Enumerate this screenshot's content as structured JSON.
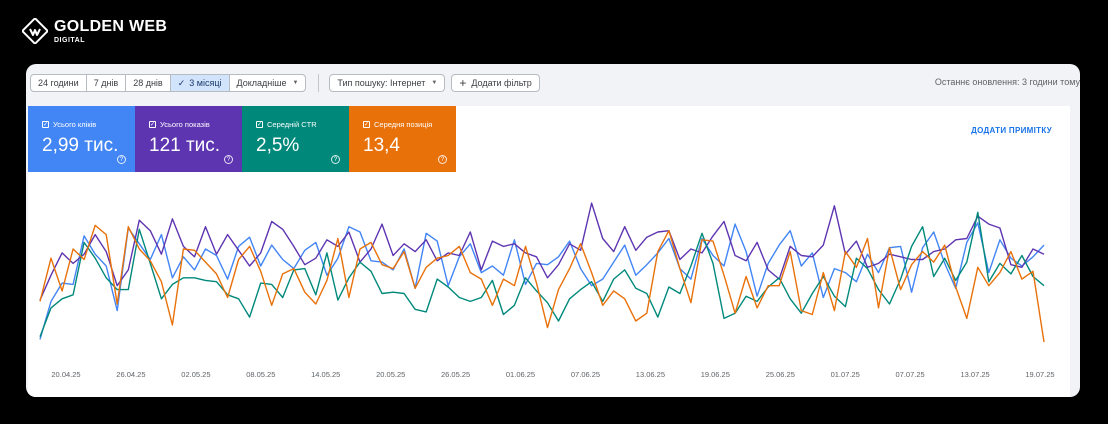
{
  "brand": {
    "name": "GOLDEN WEB",
    "sub": "DIGITAL",
    "logo_icon": "golden-web-logo-icon"
  },
  "toolbar": {
    "ranges": [
      {
        "label": "24 години",
        "active": false
      },
      {
        "label": "7 днів",
        "active": false
      },
      {
        "label": "28 днів",
        "active": false
      },
      {
        "label": "3 місяці",
        "active": true
      },
      {
        "label": "Докладніше",
        "active": false
      }
    ],
    "search_type": "Тип пошуку: Інтернет",
    "add_filter": "Додати фільтр",
    "last_update": "Останнє оновлення: 3 години тому"
  },
  "metrics": [
    {
      "label": "Усього кліків",
      "value": "2,99 тис.",
      "color": "#4285f4"
    },
    {
      "label": "Усього показів",
      "value": "121 тис.",
      "color": "#5e35b1"
    },
    {
      "label": "Середній CTR",
      "value": "2,5%",
      "color": "#00897b"
    },
    {
      "label": "Середня позиція",
      "value": "13,4",
      "color": "#e8710a"
    }
  ],
  "add_note": "ДОДАТИ ПРИМІТКУ",
  "chart_data": {
    "type": "line",
    "x_tick_labels": [
      "20.04.25",
      "26.04.25",
      "02.05.25",
      "08.05.25",
      "14.05.25",
      "20.05.25",
      "26.05.25",
      "01.06.25",
      "07.06.25",
      "13.06.25",
      "19.06.25",
      "25.06.25",
      "01.07.25",
      "07.07.25",
      "13.07.25",
      "19.07.25"
    ],
    "grid": false,
    "y_axis_visible": false,
    "series": [
      {
        "color": "#4285f4",
        "values": [
          2,
          31,
          45,
          44,
          81,
          67,
          58,
          24,
          87,
          75,
          63,
          82,
          49,
          65,
          55,
          71,
          66,
          48,
          73,
          80,
          58,
          74,
          63,
          56,
          70,
          76,
          51,
          64,
          88,
          84,
          62,
          61,
          55,
          71,
          41,
          83,
          77,
          43,
          65,
          75,
          53,
          58,
          51,
          78,
          44,
          60,
          59,
          65,
          77,
          56,
          43,
          48,
          61,
          74,
          51,
          59,
          68,
          79,
          56,
          48,
          79,
          66,
          58,
          90,
          69,
          35,
          60,
          74,
          85,
          58,
          68,
          34,
          56,
          53,
          46,
          67,
          53,
          72,
          73,
          38,
          72,
          84,
          60,
          41,
          76,
          91,
          53,
          78,
          64,
          58,
          65,
          74
        ]
      },
      {
        "color": "#5e35b1",
        "values": [
          32,
          51,
          68,
          60,
          67,
          82,
          69,
          43,
          55,
          93,
          85,
          67,
          94,
          73,
          65,
          88,
          67,
          82,
          70,
          58,
          68,
          92,
          86,
          73,
          59,
          64,
          78,
          73,
          84,
          61,
          71,
          90,
          66,
          75,
          69,
          78,
          62,
          68,
          66,
          84,
          55,
          77,
          73,
          75,
          68,
          65,
          49,
          59,
          75,
          70,
          106,
          79,
          69,
          88,
          70,
          80,
          84,
          85,
          63,
          71,
          68,
          81,
          92,
          66,
          62,
          76,
          55,
          48,
          73,
          66,
          65,
          74,
          104,
          67,
          77,
          57,
          60,
          67,
          65,
          63,
          63,
          69,
          71,
          78,
          79,
          96,
          90,
          87,
          59,
          57,
          71,
          67
        ]
      },
      {
        "color": "#00897b",
        "values": [
          4,
          26,
          33,
          36,
          76,
          64,
          49,
          40,
          40,
          86,
          60,
          33,
          44,
          49,
          49,
          47,
          46,
          36,
          33,
          19,
          45,
          44,
          34,
          55,
          56,
          36,
          68,
          32,
          49,
          61,
          54,
          37,
          38,
          37,
          25,
          23,
          48,
          42,
          34,
          31,
          34,
          47,
          21,
          28,
          49,
          39,
          30,
          16,
          33,
          40,
          46,
          31,
          48,
          55,
          41,
          37,
          19,
          42,
          37,
          58,
          83,
          60,
          18,
          22,
          35,
          31,
          42,
          49,
          33,
          22,
          37,
          50,
          35,
          27,
          64,
          56,
          40,
          29,
          48,
          73,
          88,
          50,
          64,
          47,
          61,
          99,
          46,
          60,
          52,
          66,
          50,
          43
        ]
      },
      {
        "color": "#e8710a",
        "values": [
          31,
          64,
          39,
          71,
          63,
          89,
          82,
          29,
          88,
          71,
          62,
          46,
          13,
          71,
          70,
          61,
          52,
          34,
          63,
          73,
          54,
          28,
          52,
          56,
          38,
          29,
          47,
          79,
          34,
          71,
          76,
          59,
          56,
          69,
          41,
          57,
          64,
          66,
          73,
          53,
          48,
          28,
          48,
          43,
          73,
          45,
          11,
          40,
          56,
          75,
          53,
          28,
          39,
          33,
          16,
          22,
          69,
          85,
          56,
          30,
          78,
          77,
          51,
          22,
          50,
          26,
          43,
          43,
          69,
          24,
          21,
          53,
          24,
          69,
          57,
          79,
          26,
          72,
          40,
          59,
          69,
          61,
          74,
          42,
          18,
          57,
          43,
          53,
          69,
          48,
          54,
          0
        ]
      }
    ]
  }
}
